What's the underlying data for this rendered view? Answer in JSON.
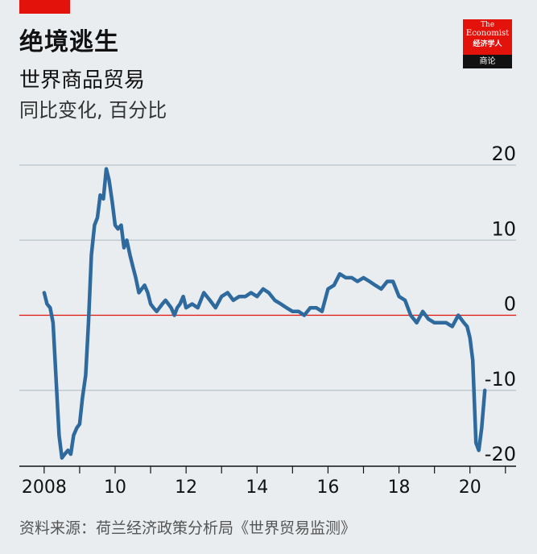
{
  "header": {
    "title": "绝境逃生",
    "subtitle": "世界商品贸易",
    "unit": "同比变化, 百分比"
  },
  "logo": {
    "line1": "The",
    "line2": "Economist",
    "line3": "经济学人",
    "line4": "商论"
  },
  "footer": {
    "source": "资料来源：荷兰经济政策分析局《世界贸易监测》"
  },
  "colors": {
    "line": "#2e6a9e",
    "zero": "#e3120b",
    "grid": "#b8c4cc",
    "brand": "#e3120b"
  },
  "chart_data": {
    "type": "line",
    "title": "世界商品贸易",
    "ylabel": "同比变化, 百分比",
    "ylim": [
      -20,
      20
    ],
    "xlim": [
      2007.3,
      2021.3
    ],
    "y_ticks": [
      20,
      10,
      0,
      -10,
      -20
    ],
    "y_tick_labels": [
      "20",
      "10",
      "0",
      "-10",
      "-20"
    ],
    "x_ticks": [
      2008,
      2010,
      2012,
      2014,
      2016,
      2018,
      2020
    ],
    "x_tick_labels": [
      "2008",
      "10",
      "12",
      "14",
      "16",
      "18",
      "20"
    ],
    "series": [
      {
        "x": [
          2008.0,
          2008.08,
          2008.17,
          2008.25,
          2008.33,
          2008.42,
          2008.5,
          2008.58,
          2008.67,
          2008.75,
          2008.83,
          2008.92,
          2009.0,
          2009.08,
          2009.17,
          2009.25,
          2009.33,
          2009.42,
          2009.5,
          2009.58,
          2009.67,
          2009.75,
          2009.83,
          2009.92,
          2010.0,
          2010.08,
          2010.17,
          2010.25,
          2010.33,
          2010.42,
          2010.5,
          2010.58,
          2010.67,
          2010.75,
          2010.83,
          2010.92,
          2011.0,
          2011.08,
          2011.17,
          2011.25,
          2011.33,
          2011.42,
          2011.5,
          2011.58,
          2011.67,
          2011.75,
          2011.83,
          2011.92,
          2012.0,
          2012.17,
          2012.33,
          2012.5,
          2012.67,
          2012.83,
          2013.0,
          2013.17,
          2013.33,
          2013.5,
          2013.67,
          2013.83,
          2014.0,
          2014.17,
          2014.33,
          2014.5,
          2014.67,
          2014.83,
          2015.0,
          2015.17,
          2015.33,
          2015.5,
          2015.67,
          2015.83,
          2016.0,
          2016.17,
          2016.33,
          2016.5,
          2016.67,
          2016.83,
          2017.0,
          2017.17,
          2017.33,
          2017.5,
          2017.67,
          2017.83,
          2018.0,
          2018.17,
          2018.33,
          2018.5,
          2018.67,
          2018.83,
          2019.0,
          2019.17,
          2019.33,
          2019.5,
          2019.67,
          2019.83,
          2019.92,
          2020.0,
          2020.08,
          2020.17,
          2020.25,
          2020.33,
          2020.42
        ],
        "y": [
          3,
          1.5,
          1,
          -1,
          -8,
          -16,
          -19,
          -18.5,
          -18,
          -18.5,
          -16,
          -15,
          -14.5,
          -11,
          -8,
          -1,
          8,
          12,
          13,
          16,
          15.5,
          19.5,
          18,
          15,
          12,
          11.5,
          12,
          9,
          10,
          8,
          6.5,
          5,
          3,
          3.5,
          4,
          3,
          1.5,
          1,
          0.5,
          1,
          1.5,
          2,
          1.5,
          1,
          0,
          1,
          1.5,
          2.5,
          1,
          1.5,
          1,
          3,
          2,
          1,
          2.5,
          3,
          2,
          2.5,
          2.5,
          3,
          2.5,
          3.5,
          3,
          2,
          1.5,
          1,
          0.5,
          0.5,
          0,
          1,
          1,
          0.5,
          3.5,
          4,
          5.5,
          5,
          5,
          4.5,
          5,
          4.5,
          4,
          3.5,
          4.5,
          4.5,
          2.5,
          2,
          0,
          -1,
          0.5,
          -0.5,
          -1,
          -1,
          -1,
          -1.5,
          0,
          -1,
          -1.5,
          -3,
          -6,
          -17,
          -18,
          -15,
          -10
        ]
      }
    ]
  }
}
